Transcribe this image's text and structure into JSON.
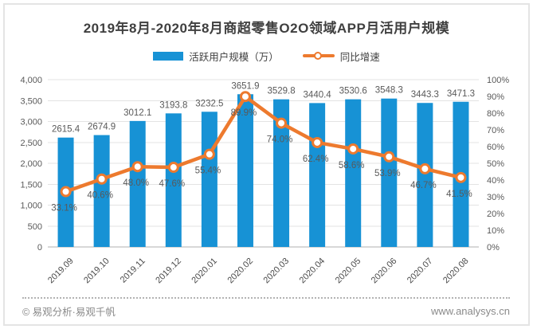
{
  "title": "2019年8月-2020年8月商超零售O2O领域APP月活用户规模",
  "legend": {
    "bar_label": "活跃用户规模（万）",
    "line_label": "同比增速"
  },
  "colors": {
    "bar": "#1792D5",
    "line": "#ED7A2E",
    "marker_fill": "#FFFFFF",
    "grid": "#E3E3E3",
    "zero_line": "#D8D8D8",
    "tick_text": "#595959",
    "data_label": "#595959",
    "x_label": "#4A4A4A"
  },
  "chart_data": {
    "type": "bar",
    "subtype": "bar+line dual-axis combo",
    "title": "2019年8月-2020年8月商超零售O2O领域APP月活用户规模",
    "categories": [
      "2019.09",
      "2019.10",
      "2019.11",
      "2019.12",
      "2020.01",
      "2020.02",
      "2020.03",
      "2020.04",
      "2020.05",
      "2020.06",
      "2020.07",
      "2020.08"
    ],
    "series": [
      {
        "name": "活跃用户规模（万）",
        "type": "bar",
        "axis": "left",
        "values": [
          2615.4,
          2674.9,
          3012.1,
          3193.8,
          3232.5,
          3651.9,
          3529.8,
          3440.4,
          3530.6,
          3548.3,
          3443.3,
          3471.3
        ]
      },
      {
        "name": "同比增速",
        "type": "line",
        "axis": "right",
        "unit": "%",
        "values": [
          33.1,
          40.6,
          48.0,
          47.6,
          55.4,
          89.9,
          74.0,
          62.4,
          58.6,
          53.9,
          46.7,
          41.5
        ]
      }
    ],
    "left_axis": {
      "min": 0,
      "max": 4000,
      "step": 500,
      "tick_labels": [
        "4,000",
        "3,500",
        "3,000",
        "2,500",
        "2,000",
        "1,500",
        "1,000",
        "500",
        "0"
      ]
    },
    "right_axis": {
      "min": 0,
      "max": 100,
      "step": 10,
      "tick_labels": [
        "100%",
        "90%",
        "80%",
        "70%",
        "60%",
        "50%",
        "40%",
        "30%",
        "20%",
        "10%",
        "0%"
      ]
    },
    "grid": "horizontal",
    "legend_position": "top"
  },
  "footer": {
    "copyright": "© 易观分析·易观千帆",
    "website": "www.analysys.cn"
  }
}
